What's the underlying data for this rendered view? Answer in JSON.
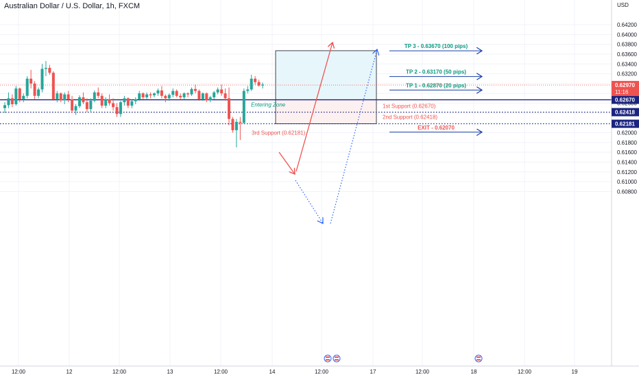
{
  "header": {
    "title": "Australian Dollar / U.S. Dollar, 1h, FXCM",
    "currency": "USD"
  },
  "chart_data": {
    "type": "candlestick",
    "symbol": "AUD/USD",
    "timeframe": "1h",
    "ylim": [
      0.608,
      0.6432
    ],
    "grid": true,
    "x_ticks": [
      "12:00",
      "12",
      "12:00",
      "13",
      "12:00",
      "14",
      "12:00",
      "17",
      "12:00",
      "18",
      "12:00",
      "19"
    ],
    "y_ticks": [
      "0.64200",
      "0.64000",
      "0.63800",
      "0.63600",
      "0.63400",
      "0.63200",
      "0.63000",
      "0.62800",
      "0.62600",
      "0.62400",
      "0.62200",
      "0.62000",
      "0.61800",
      "0.61600",
      "0.61400",
      "0.61200",
      "0.61000",
      "0.60800"
    ],
    "y_tick_values": [
      0.642,
      0.64,
      0.638,
      0.636,
      0.634,
      0.632,
      0.63,
      0.628,
      0.626,
      0.624,
      0.622,
      0.62,
      0.618,
      0.616,
      0.614,
      0.612,
      0.61,
      0.608
    ],
    "candles": [
      [
        0.625,
        0.6262,
        0.624,
        0.6256
      ],
      [
        0.6256,
        0.6282,
        0.625,
        0.627
      ],
      [
        0.627,
        0.6278,
        0.6252,
        0.6258
      ],
      [
        0.6258,
        0.6295,
        0.6255,
        0.629
      ],
      [
        0.629,
        0.6292,
        0.6262,
        0.6268
      ],
      [
        0.6268,
        0.628,
        0.6262,
        0.6275
      ],
      [
        0.6275,
        0.6315,
        0.627,
        0.631
      ],
      [
        0.631,
        0.6328,
        0.629,
        0.63
      ],
      [
        0.63,
        0.6305,
        0.6268,
        0.6275
      ],
      [
        0.6275,
        0.6292,
        0.627,
        0.6288
      ],
      [
        0.6288,
        0.634,
        0.6282,
        0.633
      ],
      [
        0.633,
        0.6346,
        0.6315,
        0.6332
      ],
      [
        0.6332,
        0.6338,
        0.6318,
        0.6322
      ],
      [
        0.6322,
        0.6325,
        0.6265,
        0.6268
      ],
      [
        0.6268,
        0.6285,
        0.6262,
        0.628
      ],
      [
        0.628,
        0.6282,
        0.6262,
        0.6266
      ],
      [
        0.6266,
        0.6282,
        0.6258,
        0.6278
      ],
      [
        0.6278,
        0.6285,
        0.6262,
        0.6268
      ],
      [
        0.6268,
        0.6275,
        0.624,
        0.6245
      ],
      [
        0.6245,
        0.6258,
        0.6236,
        0.6254
      ],
      [
        0.6254,
        0.6276,
        0.625,
        0.6272
      ],
      [
        0.6272,
        0.6282,
        0.6258,
        0.6262
      ],
      [
        0.6262,
        0.627,
        0.6242,
        0.6248
      ],
      [
        0.6248,
        0.627,
        0.6242,
        0.6265
      ],
      [
        0.6265,
        0.6286,
        0.6262,
        0.6282
      ],
      [
        0.6282,
        0.6292,
        0.627,
        0.6275
      ],
      [
        0.6275,
        0.628,
        0.625,
        0.6255
      ],
      [
        0.6255,
        0.6272,
        0.625,
        0.6268
      ],
      [
        0.6268,
        0.6278,
        0.6255,
        0.626
      ],
      [
        0.626,
        0.627,
        0.6245,
        0.6252
      ],
      [
        0.6252,
        0.626,
        0.6232,
        0.6238
      ],
      [
        0.6238,
        0.6265,
        0.6232,
        0.6262
      ],
      [
        0.6262,
        0.6275,
        0.6255,
        0.627
      ],
      [
        0.627,
        0.6272,
        0.625,
        0.6255
      ],
      [
        0.6255,
        0.6268,
        0.625,
        0.6264
      ],
      [
        0.6264,
        0.6272,
        0.6258,
        0.6268
      ],
      [
        0.6268,
        0.6285,
        0.6265,
        0.628
      ],
      [
        0.628,
        0.6282,
        0.6268,
        0.6272
      ],
      [
        0.6272,
        0.6282,
        0.6268,
        0.6278
      ],
      [
        0.6278,
        0.6282,
        0.627,
        0.6276
      ],
      [
        0.6276,
        0.6282,
        0.6272,
        0.628
      ],
      [
        0.628,
        0.629,
        0.6275,
        0.6286
      ],
      [
        0.6286,
        0.6295,
        0.627,
        0.6275
      ],
      [
        0.6275,
        0.6278,
        0.6262,
        0.627
      ],
      [
        0.627,
        0.628,
        0.6265,
        0.6277
      ],
      [
        0.6277,
        0.629,
        0.6272,
        0.6285
      ],
      [
        0.6285,
        0.6288,
        0.6272,
        0.6275
      ],
      [
        0.6275,
        0.628,
        0.6268,
        0.6272
      ],
      [
        0.6272,
        0.6282,
        0.6268,
        0.628
      ],
      [
        0.628,
        0.6282,
        0.6272,
        0.6278
      ],
      [
        0.6278,
        0.6292,
        0.6275,
        0.6289
      ],
      [
        0.6289,
        0.6298,
        0.628,
        0.6285
      ],
      [
        0.6285,
        0.6288,
        0.6265,
        0.6268
      ],
      [
        0.6268,
        0.6282,
        0.6265,
        0.628
      ],
      [
        0.628,
        0.6282,
        0.6262,
        0.6266
      ],
      [
        0.6266,
        0.6275,
        0.6262,
        0.6272
      ],
      [
        0.6272,
        0.6285,
        0.6268,
        0.6282
      ],
      [
        0.6282,
        0.6292,
        0.6278,
        0.6288
      ],
      [
        0.6288,
        0.6298,
        0.6275,
        0.628
      ],
      [
        0.628,
        0.629,
        0.6265,
        0.627
      ],
      [
        0.627,
        0.6292,
        0.6215,
        0.6228
      ],
      [
        0.6228,
        0.6232,
        0.62,
        0.6205
      ],
      [
        0.6205,
        0.6228,
        0.617,
        0.6222
      ],
      [
        0.6222,
        0.6232,
        0.6185,
        0.622
      ],
      [
        0.622,
        0.629,
        0.6218,
        0.6285
      ],
      [
        0.6285,
        0.6295,
        0.628,
        0.6288
      ],
      [
        0.6288,
        0.6318,
        0.6285,
        0.631
      ],
      [
        0.631,
        0.6315,
        0.6298,
        0.6303
      ],
      [
        0.6303,
        0.6308,
        0.6294,
        0.6296
      ],
      [
        0.6296,
        0.6302,
        0.629,
        0.6298
      ]
    ],
    "colors": {
      "up": "#26a69a",
      "down": "#ef5350"
    },
    "current_price": {
      "value": 0.6297,
      "label": "0.62970",
      "countdown": "11:16",
      "color": "#ef5350"
    },
    "levels": [
      {
        "name": "1st Support",
        "value": 0.6267,
        "text": "1st Support (0.62670)",
        "axis_label": "0.62670",
        "style": "solid",
        "color": "#1a237e"
      },
      {
        "name": "2nd Support",
        "value": 0.62418,
        "text": "2nd Support (0.62418)",
        "axis_label": "0.62418",
        "style": "dotted",
        "color": "#1a237e"
      },
      {
        "name": "3rd Support",
        "value": 0.62181,
        "text": "3rd Support (0.62181)",
        "axis_label": "0.62181",
        "style": "dotted",
        "color": "#1a237e"
      }
    ],
    "targets": [
      {
        "text": "TP 3 - 0.63670 (100 pips)",
        "value": 0.6367,
        "color": "#089981"
      },
      {
        "text": "TP 2 - 0.63170 (50 pips)",
        "value": 0.6317,
        "color": "#089981"
      },
      {
        "text": "TP 1 - 0.62870 (20 pips)",
        "value": 0.6287,
        "color": "#089981"
      },
      {
        "text": "EXIT - 0.62070",
        "value": 0.6207,
        "color": "#ef5350"
      }
    ],
    "zone": {
      "label": "Entering Zone",
      "top": 0.6367,
      "mid": 0.6267,
      "bottom": 0.62181
    },
    "annotation_color": "#ef5350",
    "path_color": "#2962ff"
  }
}
